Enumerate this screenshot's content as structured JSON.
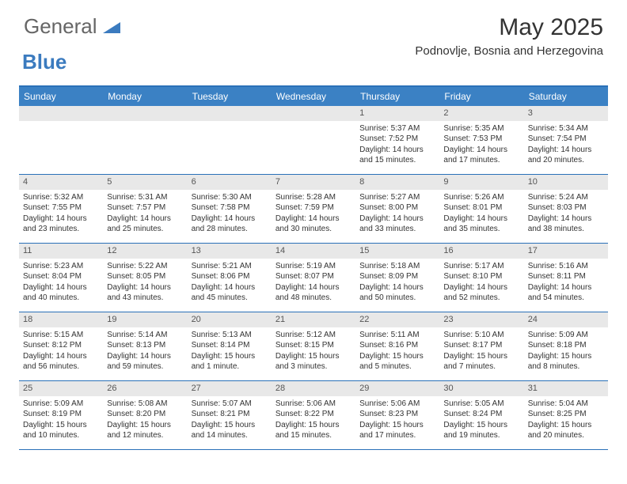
{
  "logo": {
    "text1": "General",
    "text2": "Blue"
  },
  "title": "May 2025",
  "subtitle": "Podnovlje, Bosnia and Herzegovina",
  "colors": {
    "header_blue": "#3b81c4",
    "border_blue": "#2a71b8",
    "daynum_bg": "#e8e8e8",
    "logo_gray": "#666666",
    "logo_blue": "#3b7bbf",
    "text": "#333333",
    "white": "#ffffff"
  },
  "fontsizes": {
    "title": 30,
    "subtitle": 15,
    "dow": 12,
    "daynum": 11,
    "body": 10,
    "logo": 26
  },
  "days_of_week": [
    "Sunday",
    "Monday",
    "Tuesday",
    "Wednesday",
    "Thursday",
    "Friday",
    "Saturday"
  ],
  "weeks": [
    [
      {
        "n": "",
        "empty": true
      },
      {
        "n": "",
        "empty": true
      },
      {
        "n": "",
        "empty": true
      },
      {
        "n": "",
        "empty": true
      },
      {
        "n": "1",
        "sunrise": "5:37 AM",
        "sunset": "7:52 PM",
        "daylight": "14 hours and 15 minutes."
      },
      {
        "n": "2",
        "sunrise": "5:35 AM",
        "sunset": "7:53 PM",
        "daylight": "14 hours and 17 minutes."
      },
      {
        "n": "3",
        "sunrise": "5:34 AM",
        "sunset": "7:54 PM",
        "daylight": "14 hours and 20 minutes."
      }
    ],
    [
      {
        "n": "4",
        "sunrise": "5:32 AM",
        "sunset": "7:55 PM",
        "daylight": "14 hours and 23 minutes."
      },
      {
        "n": "5",
        "sunrise": "5:31 AM",
        "sunset": "7:57 PM",
        "daylight": "14 hours and 25 minutes."
      },
      {
        "n": "6",
        "sunrise": "5:30 AM",
        "sunset": "7:58 PM",
        "daylight": "14 hours and 28 minutes."
      },
      {
        "n": "7",
        "sunrise": "5:28 AM",
        "sunset": "7:59 PM",
        "daylight": "14 hours and 30 minutes."
      },
      {
        "n": "8",
        "sunrise": "5:27 AM",
        "sunset": "8:00 PM",
        "daylight": "14 hours and 33 minutes."
      },
      {
        "n": "9",
        "sunrise": "5:26 AM",
        "sunset": "8:01 PM",
        "daylight": "14 hours and 35 minutes."
      },
      {
        "n": "10",
        "sunrise": "5:24 AM",
        "sunset": "8:03 PM",
        "daylight": "14 hours and 38 minutes."
      }
    ],
    [
      {
        "n": "11",
        "sunrise": "5:23 AM",
        "sunset": "8:04 PM",
        "daylight": "14 hours and 40 minutes."
      },
      {
        "n": "12",
        "sunrise": "5:22 AM",
        "sunset": "8:05 PM",
        "daylight": "14 hours and 43 minutes."
      },
      {
        "n": "13",
        "sunrise": "5:21 AM",
        "sunset": "8:06 PM",
        "daylight": "14 hours and 45 minutes."
      },
      {
        "n": "14",
        "sunrise": "5:19 AM",
        "sunset": "8:07 PM",
        "daylight": "14 hours and 48 minutes."
      },
      {
        "n": "15",
        "sunrise": "5:18 AM",
        "sunset": "8:09 PM",
        "daylight": "14 hours and 50 minutes."
      },
      {
        "n": "16",
        "sunrise": "5:17 AM",
        "sunset": "8:10 PM",
        "daylight": "14 hours and 52 minutes."
      },
      {
        "n": "17",
        "sunrise": "5:16 AM",
        "sunset": "8:11 PM",
        "daylight": "14 hours and 54 minutes."
      }
    ],
    [
      {
        "n": "18",
        "sunrise": "5:15 AM",
        "sunset": "8:12 PM",
        "daylight": "14 hours and 56 minutes."
      },
      {
        "n": "19",
        "sunrise": "5:14 AM",
        "sunset": "8:13 PM",
        "daylight": "14 hours and 59 minutes."
      },
      {
        "n": "20",
        "sunrise": "5:13 AM",
        "sunset": "8:14 PM",
        "daylight": "15 hours and 1 minute."
      },
      {
        "n": "21",
        "sunrise": "5:12 AM",
        "sunset": "8:15 PM",
        "daylight": "15 hours and 3 minutes."
      },
      {
        "n": "22",
        "sunrise": "5:11 AM",
        "sunset": "8:16 PM",
        "daylight": "15 hours and 5 minutes."
      },
      {
        "n": "23",
        "sunrise": "5:10 AM",
        "sunset": "8:17 PM",
        "daylight": "15 hours and 7 minutes."
      },
      {
        "n": "24",
        "sunrise": "5:09 AM",
        "sunset": "8:18 PM",
        "daylight": "15 hours and 8 minutes."
      }
    ],
    [
      {
        "n": "25",
        "sunrise": "5:09 AM",
        "sunset": "8:19 PM",
        "daylight": "15 hours and 10 minutes."
      },
      {
        "n": "26",
        "sunrise": "5:08 AM",
        "sunset": "8:20 PM",
        "daylight": "15 hours and 12 minutes."
      },
      {
        "n": "27",
        "sunrise": "5:07 AM",
        "sunset": "8:21 PM",
        "daylight": "15 hours and 14 minutes."
      },
      {
        "n": "28",
        "sunrise": "5:06 AM",
        "sunset": "8:22 PM",
        "daylight": "15 hours and 15 minutes."
      },
      {
        "n": "29",
        "sunrise": "5:06 AM",
        "sunset": "8:23 PM",
        "daylight": "15 hours and 17 minutes."
      },
      {
        "n": "30",
        "sunrise": "5:05 AM",
        "sunset": "8:24 PM",
        "daylight": "15 hours and 19 minutes."
      },
      {
        "n": "31",
        "sunrise": "5:04 AM",
        "sunset": "8:25 PM",
        "daylight": "15 hours and 20 minutes."
      }
    ]
  ],
  "labels": {
    "sunrise": "Sunrise: ",
    "sunset": "Sunset: ",
    "daylight": "Daylight: "
  }
}
